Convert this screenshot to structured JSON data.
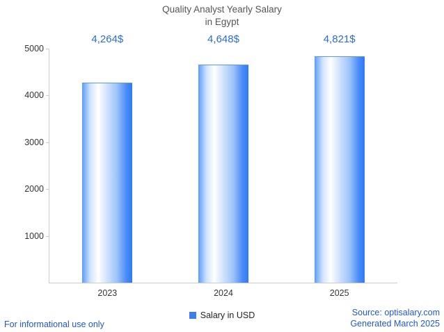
{
  "title": {
    "line1": "Quality Analyst Yearly Salary",
    "line2": "in Egypt"
  },
  "chart_data": {
    "type": "bar",
    "title": "Quality Analyst Yearly Salary in Egypt",
    "categories": [
      "2023",
      "2024",
      "2025"
    ],
    "values": [
      4264,
      4648,
      4821
    ],
    "value_labels": [
      "4,264$",
      "4,648$",
      "4,821$"
    ],
    "xlabel": "",
    "ylabel": "",
    "ylim": [
      0,
      5000
    ],
    "yticks": [
      1000,
      2000,
      3000,
      4000,
      5000
    ],
    "grid": false,
    "legend_position": "bottom",
    "legend": [
      {
        "label": "Salary in USD",
        "color": "#3b7df0"
      }
    ]
  },
  "footer": {
    "left": "For informational use only",
    "source": "Source: optisalary.com",
    "generated": "Generated March 2025"
  },
  "colors": {
    "value_label_text": "#2b6bd8",
    "footer_text": "#2255d4",
    "axis": "#cccccc",
    "title_text": "#555555",
    "tick_text": "#333333",
    "bar_edge": "#2e7bf6"
  }
}
